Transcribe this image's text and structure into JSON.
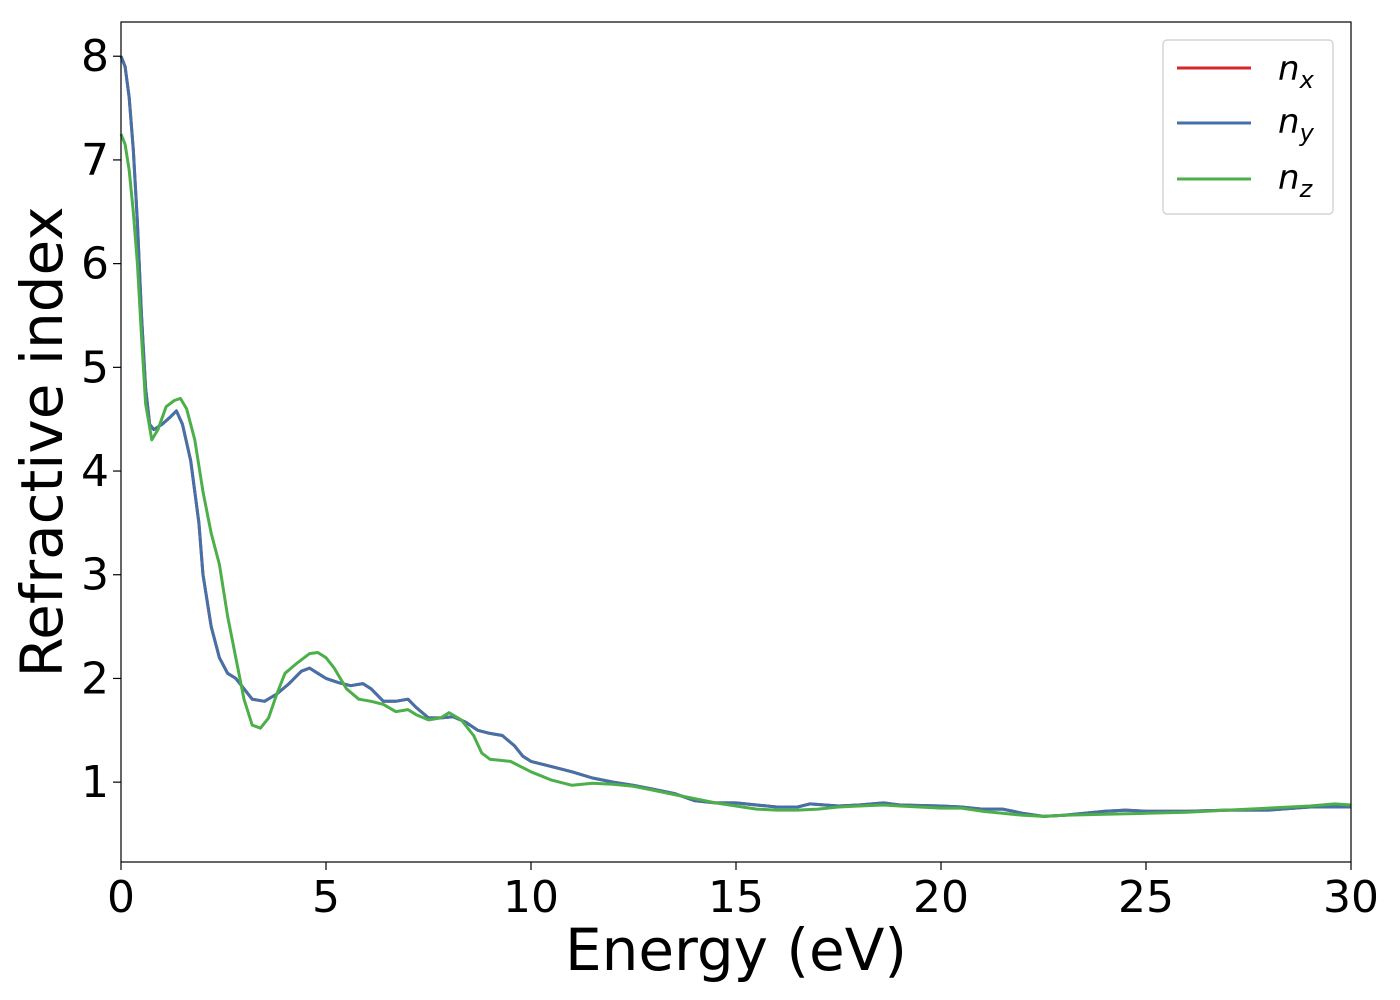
{
  "chart_data": {
    "type": "line",
    "title": "",
    "xlabel": "Energy (eV)",
    "ylabel": "Refractive index",
    "xlim": [
      0,
      30
    ],
    "ylim": [
      0.23,
      8.33
    ],
    "xticks": [
      0,
      5,
      10,
      15,
      20,
      25,
      30
    ],
    "yticks": [
      1,
      2,
      3,
      4,
      5,
      6,
      7,
      8
    ],
    "grid": false,
    "legend_position": "top-right",
    "series": [
      {
        "name": "n_x",
        "legend_main": "n",
        "legend_sub": "x",
        "color": "#d62728",
        "points": [
          [
            0,
            8.0
          ],
          [
            0.1,
            7.9
          ],
          [
            0.2,
            7.6
          ],
          [
            0.3,
            7.1
          ],
          [
            0.4,
            6.4
          ],
          [
            0.5,
            5.5
          ],
          [
            0.6,
            4.8
          ],
          [
            0.7,
            4.45
          ],
          [
            0.8,
            4.4
          ],
          [
            1.0,
            4.45
          ],
          [
            1.2,
            4.52
          ],
          [
            1.35,
            4.58
          ],
          [
            1.5,
            4.45
          ],
          [
            1.7,
            4.1
          ],
          [
            1.9,
            3.5
          ],
          [
            2.0,
            3.0
          ],
          [
            2.2,
            2.5
          ],
          [
            2.4,
            2.2
          ],
          [
            2.6,
            2.05
          ],
          [
            2.8,
            2.0
          ],
          [
            3.0,
            1.9
          ],
          [
            3.2,
            1.8
          ],
          [
            3.5,
            1.78
          ],
          [
            3.8,
            1.85
          ],
          [
            4.1,
            1.95
          ],
          [
            4.4,
            2.07
          ],
          [
            4.6,
            2.1
          ],
          [
            4.8,
            2.05
          ],
          [
            5.0,
            2.0
          ],
          [
            5.3,
            1.96
          ],
          [
            5.6,
            1.93
          ],
          [
            5.9,
            1.95
          ],
          [
            6.1,
            1.9
          ],
          [
            6.4,
            1.78
          ],
          [
            6.7,
            1.78
          ],
          [
            7.0,
            1.8
          ],
          [
            7.2,
            1.72
          ],
          [
            7.5,
            1.62
          ],
          [
            7.8,
            1.62
          ],
          [
            8.1,
            1.63
          ],
          [
            8.4,
            1.58
          ],
          [
            8.7,
            1.5
          ],
          [
            9.0,
            1.47
          ],
          [
            9.3,
            1.45
          ],
          [
            9.6,
            1.35
          ],
          [
            9.8,
            1.25
          ],
          [
            10.0,
            1.2
          ],
          [
            10.5,
            1.15
          ],
          [
            11.0,
            1.1
          ],
          [
            11.5,
            1.04
          ],
          [
            12.0,
            1.0
          ],
          [
            12.5,
            0.97
          ],
          [
            13.0,
            0.93
          ],
          [
            13.5,
            0.89
          ],
          [
            14.0,
            0.82
          ],
          [
            14.5,
            0.8
          ],
          [
            15.0,
            0.8
          ],
          [
            15.5,
            0.78
          ],
          [
            16.0,
            0.76
          ],
          [
            16.5,
            0.76
          ],
          [
            16.8,
            0.79
          ],
          [
            17.5,
            0.77
          ],
          [
            18.0,
            0.78
          ],
          [
            18.6,
            0.8
          ],
          [
            19.0,
            0.78
          ],
          [
            20.0,
            0.77
          ],
          [
            20.5,
            0.76
          ],
          [
            21.0,
            0.74
          ],
          [
            21.5,
            0.74
          ],
          [
            22.0,
            0.7
          ],
          [
            22.5,
            0.67
          ],
          [
            23.0,
            0.68
          ],
          [
            23.5,
            0.7
          ],
          [
            24.0,
            0.72
          ],
          [
            24.5,
            0.73
          ],
          [
            25.0,
            0.72
          ],
          [
            26.0,
            0.72
          ],
          [
            27.0,
            0.73
          ],
          [
            28.0,
            0.73
          ],
          [
            29.0,
            0.76
          ],
          [
            30.0,
            0.76
          ]
        ]
      },
      {
        "name": "n_y",
        "legend_main": "n",
        "legend_sub": "y",
        "color": "#4472a8",
        "points": [
          [
            0,
            8.0
          ],
          [
            0.1,
            7.9
          ],
          [
            0.2,
            7.6
          ],
          [
            0.3,
            7.1
          ],
          [
            0.4,
            6.4
          ],
          [
            0.5,
            5.5
          ],
          [
            0.6,
            4.8
          ],
          [
            0.7,
            4.45
          ],
          [
            0.8,
            4.4
          ],
          [
            1.0,
            4.45
          ],
          [
            1.2,
            4.52
          ],
          [
            1.35,
            4.58
          ],
          [
            1.5,
            4.45
          ],
          [
            1.7,
            4.1
          ],
          [
            1.9,
            3.5
          ],
          [
            2.0,
            3.0
          ],
          [
            2.2,
            2.5
          ],
          [
            2.4,
            2.2
          ],
          [
            2.6,
            2.05
          ],
          [
            2.8,
            2.0
          ],
          [
            3.0,
            1.9
          ],
          [
            3.2,
            1.8
          ],
          [
            3.5,
            1.78
          ],
          [
            3.8,
            1.85
          ],
          [
            4.1,
            1.95
          ],
          [
            4.4,
            2.07
          ],
          [
            4.6,
            2.1
          ],
          [
            4.8,
            2.05
          ],
          [
            5.0,
            2.0
          ],
          [
            5.3,
            1.96
          ],
          [
            5.6,
            1.93
          ],
          [
            5.9,
            1.95
          ],
          [
            6.1,
            1.9
          ],
          [
            6.4,
            1.78
          ],
          [
            6.7,
            1.78
          ],
          [
            7.0,
            1.8
          ],
          [
            7.2,
            1.72
          ],
          [
            7.5,
            1.62
          ],
          [
            7.8,
            1.62
          ],
          [
            8.1,
            1.63
          ],
          [
            8.4,
            1.58
          ],
          [
            8.7,
            1.5
          ],
          [
            9.0,
            1.47
          ],
          [
            9.3,
            1.45
          ],
          [
            9.6,
            1.35
          ],
          [
            9.8,
            1.25
          ],
          [
            10.0,
            1.2
          ],
          [
            10.5,
            1.15
          ],
          [
            11.0,
            1.1
          ],
          [
            11.5,
            1.04
          ],
          [
            12.0,
            1.0
          ],
          [
            12.5,
            0.97
          ],
          [
            13.0,
            0.93
          ],
          [
            13.5,
            0.89
          ],
          [
            14.0,
            0.82
          ],
          [
            14.5,
            0.8
          ],
          [
            15.0,
            0.8
          ],
          [
            15.5,
            0.78
          ],
          [
            16.0,
            0.76
          ],
          [
            16.5,
            0.76
          ],
          [
            16.8,
            0.79
          ],
          [
            17.5,
            0.77
          ],
          [
            18.0,
            0.78
          ],
          [
            18.6,
            0.8
          ],
          [
            19.0,
            0.78
          ],
          [
            20.0,
            0.77
          ],
          [
            20.5,
            0.76
          ],
          [
            21.0,
            0.74
          ],
          [
            21.5,
            0.74
          ],
          [
            22.0,
            0.7
          ],
          [
            22.5,
            0.67
          ],
          [
            23.0,
            0.68
          ],
          [
            23.5,
            0.7
          ],
          [
            24.0,
            0.72
          ],
          [
            24.5,
            0.73
          ],
          [
            25.0,
            0.72
          ],
          [
            26.0,
            0.72
          ],
          [
            27.0,
            0.73
          ],
          [
            28.0,
            0.73
          ],
          [
            29.0,
            0.76
          ],
          [
            30.0,
            0.76
          ]
        ]
      },
      {
        "name": "n_z",
        "legend_main": "n",
        "legend_sub": "z",
        "color": "#4daf4a",
        "points": [
          [
            0,
            7.25
          ],
          [
            0.1,
            7.15
          ],
          [
            0.2,
            6.9
          ],
          [
            0.3,
            6.5
          ],
          [
            0.4,
            6.0
          ],
          [
            0.5,
            5.3
          ],
          [
            0.6,
            4.65
          ],
          [
            0.75,
            4.3
          ],
          [
            0.9,
            4.4
          ],
          [
            1.1,
            4.62
          ],
          [
            1.3,
            4.68
          ],
          [
            1.45,
            4.7
          ],
          [
            1.6,
            4.6
          ],
          [
            1.8,
            4.3
          ],
          [
            2.0,
            3.8
          ],
          [
            2.2,
            3.4
          ],
          [
            2.4,
            3.1
          ],
          [
            2.6,
            2.6
          ],
          [
            2.8,
            2.2
          ],
          [
            3.0,
            1.8
          ],
          [
            3.2,
            1.55
          ],
          [
            3.4,
            1.52
          ],
          [
            3.6,
            1.62
          ],
          [
            3.8,
            1.85
          ],
          [
            4.0,
            2.05
          ],
          [
            4.3,
            2.15
          ],
          [
            4.6,
            2.24
          ],
          [
            4.8,
            2.25
          ],
          [
            5.0,
            2.2
          ],
          [
            5.2,
            2.1
          ],
          [
            5.5,
            1.9
          ],
          [
            5.8,
            1.8
          ],
          [
            6.1,
            1.78
          ],
          [
            6.4,
            1.75
          ],
          [
            6.7,
            1.68
          ],
          [
            7.0,
            1.7
          ],
          [
            7.2,
            1.65
          ],
          [
            7.5,
            1.6
          ],
          [
            7.8,
            1.62
          ],
          [
            8.0,
            1.67
          ],
          [
            8.3,
            1.6
          ],
          [
            8.6,
            1.45
          ],
          [
            8.8,
            1.28
          ],
          [
            9.0,
            1.22
          ],
          [
            9.5,
            1.2
          ],
          [
            10.0,
            1.1
          ],
          [
            10.5,
            1.02
          ],
          [
            11.0,
            0.97
          ],
          [
            11.5,
            0.99
          ],
          [
            12.0,
            0.98
          ],
          [
            12.5,
            0.96
          ],
          [
            13.0,
            0.92
          ],
          [
            13.5,
            0.88
          ],
          [
            14.0,
            0.84
          ],
          [
            14.5,
            0.8
          ],
          [
            15.0,
            0.77
          ],
          [
            15.5,
            0.74
          ],
          [
            16.0,
            0.73
          ],
          [
            16.5,
            0.73
          ],
          [
            17.0,
            0.74
          ],
          [
            17.5,
            0.76
          ],
          [
            18.0,
            0.77
          ],
          [
            18.6,
            0.78
          ],
          [
            19.0,
            0.77
          ],
          [
            20.0,
            0.75
          ],
          [
            20.5,
            0.75
          ],
          [
            21.0,
            0.72
          ],
          [
            21.5,
            0.7
          ],
          [
            22.0,
            0.68
          ],
          [
            22.5,
            0.67
          ],
          [
            23.0,
            0.68
          ],
          [
            24.0,
            0.69
          ],
          [
            25.0,
            0.7
          ],
          [
            26.0,
            0.71
          ],
          [
            27.0,
            0.73
          ],
          [
            28.0,
            0.75
          ],
          [
            29.0,
            0.77
          ],
          [
            29.6,
            0.79
          ],
          [
            30.0,
            0.78
          ]
        ]
      }
    ]
  }
}
